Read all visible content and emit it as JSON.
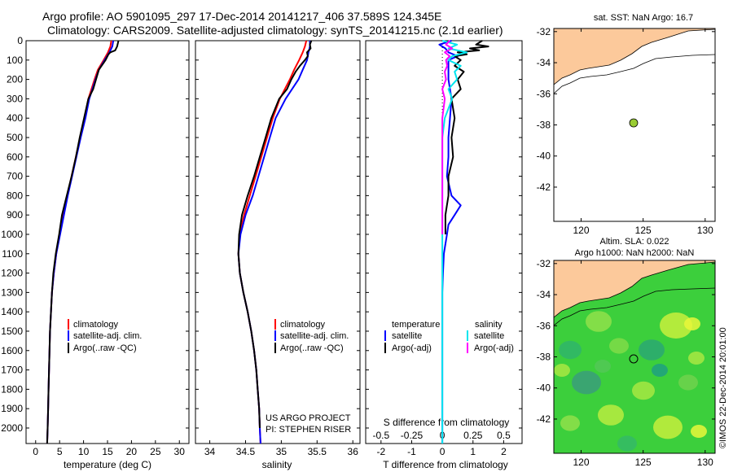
{
  "header": {
    "line1": "Argo profile: AO 5901095_297 17-Dec-2014 20141217_406 37.589S 124.345E",
    "line2": "Climatology: CARS2009. Satellite-adjusted climatology: synTS_20141215.nc (2.1d earlier)"
  },
  "colors": {
    "climatology": "#ff0000",
    "satellite": "#0000ff",
    "argo": "#000000",
    "satellite_salinity": "#00e5ee",
    "argo_adj_salinity": "#ff00ff",
    "land": "#fcc99b",
    "argo_point": "#99cc33"
  },
  "chart_data": [
    {
      "type": "line",
      "xlabel": "temperature (deg C)",
      "x_ticks": [
        "0",
        "5",
        "10",
        "15",
        "20",
        "25",
        "30"
      ],
      "xlim": [
        -2,
        32
      ],
      "y_ticks": [
        "0",
        "100",
        "200",
        "300",
        "400",
        "500",
        "600",
        "700",
        "800",
        "900",
        "1000",
        "1100",
        "1200",
        "1300",
        "1400",
        "1500",
        "1600",
        "1700",
        "1800",
        "1900",
        "2000"
      ],
      "ylim": [
        0,
        2080
      ],
      "y_reversed": true,
      "legend": [
        "climatology",
        "satellite-adj. clim.",
        "Argo(..raw -QC)"
      ],
      "series": [
        {
          "name": "climatology",
          "depth": [
            0,
            30,
            60,
            100,
            150,
            200,
            300,
            400,
            500,
            600,
            700,
            800,
            900,
            1000,
            1100,
            1200,
            1300,
            1400,
            1500,
            1600,
            1700,
            1800,
            1900,
            2000,
            2080
          ],
          "values": [
            15.8,
            15.6,
            15.1,
            14.2,
            13.0,
            12.3,
            11.0,
            10.2,
            9.3,
            8.4,
            7.5,
            6.6,
            5.8,
            5.0,
            4.3,
            3.8,
            3.4,
            3.2,
            3.0,
            2.9,
            2.8,
            2.7,
            2.6,
            2.5,
            2.4
          ]
        },
        {
          "name": "satellite-adj. clim.",
          "depth": [
            0,
            30,
            60,
            100,
            150,
            200,
            300,
            400,
            500,
            600,
            700,
            800,
            900,
            1000,
            1100,
            1200,
            1300,
            1400,
            1500,
            1600,
            1700,
            1800,
            1900,
            2000,
            2080
          ],
          "values": [
            16.2,
            16.0,
            15.4,
            14.4,
            13.2,
            12.5,
            11.2,
            10.4,
            9.4,
            8.5,
            7.6,
            6.7,
            5.9,
            5.1,
            4.3,
            3.8,
            3.4,
            3.2,
            3.0,
            2.9,
            2.8,
            2.7,
            2.6,
            2.5,
            2.4
          ]
        },
        {
          "name": "Argo(..raw -QC)",
          "depth": [
            0,
            10,
            30,
            50,
            60,
            70,
            100,
            150,
            200,
            250,
            300,
            400,
            500,
            600,
            700,
            800,
            900,
            1000,
            1100,
            1200,
            1300,
            1400,
            1500,
            1600,
            1700,
            1800,
            1900,
            2000,
            2080
          ],
          "values": [
            17.3,
            17.2,
            17.0,
            16.6,
            15.6,
            15.2,
            14.6,
            13.2,
            12.6,
            12.0,
            11.0,
            10.1,
            9.2,
            8.4,
            7.5,
            6.5,
            5.5,
            4.9,
            4.2,
            3.7,
            3.4,
            3.2,
            3.0,
            2.9,
            2.8,
            2.7,
            2.6,
            2.5,
            2.4
          ]
        }
      ]
    },
    {
      "type": "line",
      "xlabel": "salinity",
      "x_ticks": [
        "34",
        "34.5",
        "35",
        "35.5",
        "36"
      ],
      "xlim": [
        33.8,
        36.1
      ],
      "ylim": [
        0,
        2080
      ],
      "y_reversed": true,
      "legend": [
        "climatology",
        "satellite-adj. clim.",
        "Argo(..raw -QC)"
      ],
      "series": [
        {
          "name": "climatology",
          "depth": [
            0,
            30,
            60,
            100,
            150,
            200,
            300,
            400,
            500,
            600,
            700,
            800,
            900,
            1000,
            1100,
            1200,
            1300,
            1400,
            1500,
            1600,
            1700,
            1800,
            1900,
            2000,
            2080
          ],
          "values": [
            35.35,
            35.33,
            35.3,
            35.25,
            35.18,
            35.12,
            34.98,
            34.88,
            34.8,
            34.72,
            34.64,
            34.56,
            34.48,
            34.42,
            34.4,
            34.42,
            34.47,
            34.53,
            34.58,
            34.62,
            34.65,
            34.67,
            34.69,
            34.7,
            34.71
          ]
        },
        {
          "name": "satellite-adj. clim.",
          "depth": [
            0,
            30,
            60,
            100,
            150,
            200,
            300,
            400,
            500,
            600,
            700,
            800,
            900,
            1000,
            1100,
            1200,
            1300,
            1400,
            1500,
            1600,
            1700,
            1800,
            1900,
            2000,
            2080
          ],
          "values": [
            35.4,
            35.4,
            35.38,
            35.36,
            35.3,
            35.24,
            35.06,
            34.92,
            34.84,
            34.76,
            34.68,
            34.6,
            34.5,
            34.43,
            34.4,
            34.42,
            34.47,
            34.53,
            34.58,
            34.62,
            34.65,
            34.67,
            34.69,
            34.7,
            34.71
          ]
        },
        {
          "name": "Argo(..raw -QC)",
          "depth": [
            0,
            20,
            40,
            60,
            80,
            100,
            130,
            160,
            200,
            250,
            300,
            400,
            500,
            600,
            700,
            800,
            900,
            1000,
            1100,
            1200,
            1300,
            1400,
            1500,
            1600,
            1700,
            1800,
            1900,
            2000
          ],
          "values": [
            35.42,
            35.4,
            35.41,
            35.36,
            35.37,
            35.33,
            35.26,
            35.2,
            35.14,
            35.08,
            34.97,
            34.86,
            34.78,
            34.7,
            34.62,
            34.53,
            34.45,
            34.41,
            34.4,
            34.42,
            34.47,
            34.53,
            34.58,
            34.62,
            34.65,
            34.67,
            34.69,
            34.7
          ]
        }
      ]
    },
    {
      "type": "line",
      "xlabel": "T difference from climatology",
      "x_ticks": [
        "-2",
        "-1",
        "0",
        "1",
        "2"
      ],
      "xlim": [
        -2.5,
        2.6
      ],
      "x2label": "S difference from climatology",
      "x2_ticks": [
        "-0.5",
        "-0.25",
        "0",
        "0.25",
        "0.5"
      ],
      "ylim": [
        0,
        2080
      ],
      "y_reversed": true,
      "legend_temperature_title": "temperature",
      "legend_salinity_title": "salinity",
      "legend_temperature": [
        "satellite",
        "Argo(-adj)"
      ],
      "legend_salinity": [
        "satellite",
        "Argo(-adj)"
      ],
      "series": [
        {
          "name": "temperature satellite",
          "depth": [
            0,
            20,
            40,
            60,
            80,
            100,
            150,
            200,
            300,
            400,
            500,
            600,
            700,
            800,
            850,
            900,
            950,
            1000,
            1100,
            1200,
            1300,
            1500,
            1700,
            2000,
            2080
          ],
          "values": [
            0.3,
            -0.1,
            0.1,
            0.2,
            0.5,
            0.2,
            0.2,
            0.2,
            0.3,
            0.25,
            0.2,
            0.2,
            0.15,
            0.3,
            0.6,
            0.4,
            0.2,
            0.15,
            0.05,
            0.02,
            0.0,
            0.0,
            0.0,
            0.0,
            0.0
          ]
        },
        {
          "name": "temperature Argo(-adj)",
          "depth": [
            0,
            10,
            20,
            30,
            40,
            50,
            60,
            70,
            80,
            100,
            130,
            160,
            200,
            250,
            300,
            400,
            500,
            600,
            700,
            800,
            900,
            1000
          ],
          "values": [
            1.3,
            1.2,
            1.1,
            1.5,
            0.9,
            1.2,
            0.5,
            0.8,
            0.4,
            0.6,
            0.4,
            0.7,
            0.5,
            0.6,
            0.3,
            0.4,
            0.3,
            0.35,
            0.2,
            0.2,
            0.1,
            0.1
          ]
        },
        {
          "name": "salinity satellite",
          "depth": [
            0,
            20,
            40,
            60,
            80,
            100,
            130,
            160,
            200,
            250,
            300,
            400,
            500,
            600,
            700,
            800,
            900,
            1000,
            1100,
            1200,
            1300,
            1400,
            1500,
            1700,
            2000,
            2080
          ],
          "values": [
            0.0,
            0.12,
            0.05,
            0.2,
            0.08,
            0.05,
            0.15,
            0.1,
            0.12,
            0.05,
            0.08,
            0.02,
            0.0,
            0.0,
            0.0,
            0.0,
            0.0,
            0.0,
            0.0,
            0.0,
            0.0,
            0.0,
            0.0,
            0.0,
            0.0,
            0.0
          ]
        },
        {
          "name": "salinity Argo(-adj)",
          "depth": [
            0,
            20,
            40,
            60,
            80,
            100,
            130,
            160,
            200,
            250,
            300,
            400,
            500,
            600,
            700,
            800,
            900,
            1000
          ],
          "values": [
            0.06,
            0.03,
            0.08,
            0.02,
            0.06,
            0.03,
            0.04,
            0.02,
            0.03,
            0.0,
            0.02,
            0.0,
            0.0,
            0.0,
            0.0,
            0.0,
            0.0,
            0.0
          ]
        }
      ]
    }
  ],
  "footer": {
    "project": "US ARGO PROJECT",
    "pi": "PI: STEPHEN RISER",
    "credit": "©IMOS 22-Dec-2014 20:01:00"
  },
  "maps": {
    "sst": {
      "title": "sat. SST: NaN Argo: 16.7",
      "x_ticks": [
        "120",
        "125",
        "130"
      ],
      "y_ticks": [
        "-32",
        "-34",
        "-36",
        "-38",
        "-40",
        "-42"
      ],
      "argo_lon": 124.345,
      "argo_lat": -37.589
    },
    "sla": {
      "title1": "Altim. SLA: 0.022",
      "title2": "Argo h1000: NaN h2000: NaN",
      "x_ticks": [
        "120",
        "125",
        "130"
      ],
      "y_ticks": [
        "-32",
        "-34",
        "-36",
        "-38",
        "-40",
        "-42"
      ],
      "argo_lon": 124.345,
      "argo_lat": -37.589
    }
  }
}
